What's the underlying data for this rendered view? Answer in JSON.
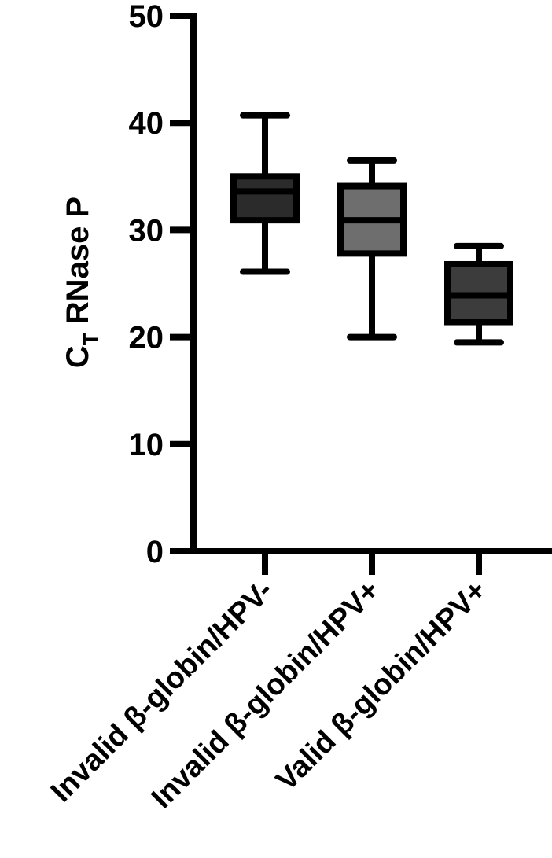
{
  "chart_data": {
    "type": "box",
    "ylabel_main": "C",
    "ylabel_sub": "T",
    "ylabel_rest": " RNase P",
    "ylim": [
      0,
      50
    ],
    "yticks": [
      0,
      10,
      20,
      30,
      40,
      50
    ],
    "ytick_labels": [
      "0",
      "10",
      "20",
      "30",
      "40",
      "50"
    ],
    "categories": [
      "Invalid β-globin/HPV-",
      "Invalid β-globin/HPV+",
      "Valid β-globin/HPV+"
    ],
    "boxes": [
      {
        "min": 26.1,
        "q1": 30.9,
        "median": 33.6,
        "q3": 35.0,
        "max": 40.7,
        "fill": "#2b2b2b"
      },
      {
        "min": 20.0,
        "q1": 27.8,
        "median": 30.9,
        "q3": 34.1,
        "max": 36.5,
        "fill": "#6e6e6e"
      },
      {
        "min": 19.5,
        "q1": 21.4,
        "median": 23.9,
        "q3": 26.8,
        "max": 28.5,
        "fill": "#3c3c3c"
      }
    ],
    "grid": false,
    "legend": "none"
  }
}
